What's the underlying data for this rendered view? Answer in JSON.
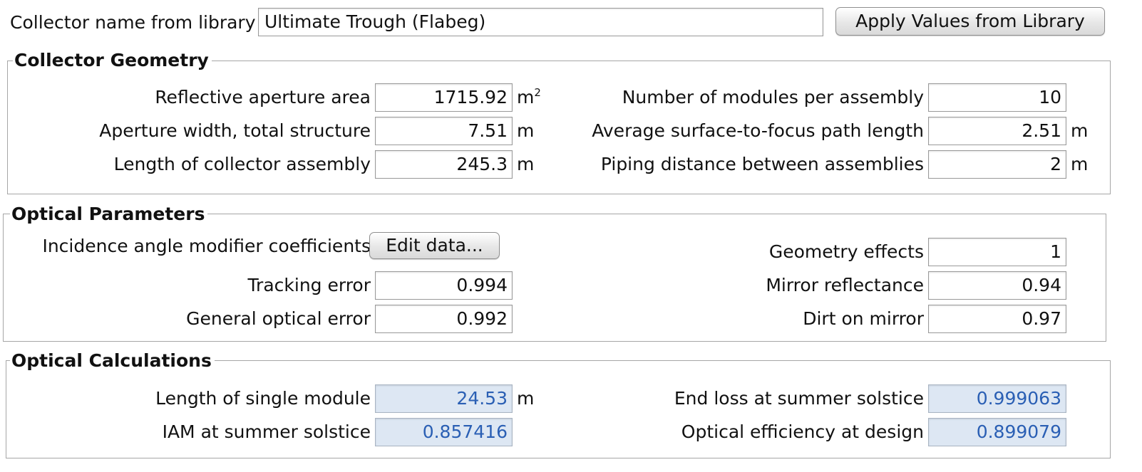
{
  "header": {
    "collector_label": "Collector name from library",
    "collector_value": "Ultimate Trough (Flabeg)",
    "apply_button": "Apply Values from Library"
  },
  "geometry": {
    "title": "Collector Geometry",
    "aperture_area_label": "Reflective aperture area",
    "aperture_area_value": "1715.92",
    "aperture_area_unit_base": "m",
    "aperture_area_unit_sup": "2",
    "aperture_width_label": "Aperture width, total structure",
    "aperture_width_value": "7.51",
    "aperture_width_unit": "m",
    "assembly_length_label": "Length of collector assembly",
    "assembly_length_value": "245.3",
    "assembly_length_unit": "m",
    "modules_label": "Number of modules per assembly",
    "modules_value": "10",
    "focus_path_label": "Average surface-to-focus path length",
    "focus_path_value": "2.51",
    "focus_path_unit": "m",
    "piping_label": "Piping distance between assemblies",
    "piping_value": "2",
    "piping_unit": "m"
  },
  "optical": {
    "title": "Optical Parameters",
    "iam_label": "Incidence angle modifier coefficients",
    "edit_button": "Edit data...",
    "tracking_label": "Tracking error",
    "tracking_value": "0.994",
    "general_label": "General optical error",
    "general_value": "0.992",
    "geometry_effects_label": "Geometry effects",
    "geometry_effects_value": "1",
    "mirror_reflectance_label": "Mirror reflectance",
    "mirror_reflectance_value": "0.94",
    "dirt_label": "Dirt on mirror",
    "dirt_value": "0.97"
  },
  "calculations": {
    "title": "Optical Calculations",
    "module_length_label": "Length of single module",
    "module_length_value": "24.53",
    "module_length_unit": "m",
    "iam_solstice_label": "IAM at summer solstice",
    "iam_solstice_value": "0.857416",
    "end_loss_label": "End loss at summer solstice",
    "end_loss_value": "0.999063",
    "optical_eff_label": "Optical efficiency at design",
    "optical_eff_value": "0.899079"
  },
  "colors": {
    "calc_field_bg": "#dde7f3",
    "calc_field_text": "#2a5fb4",
    "group_border": "#a6a6a6"
  }
}
